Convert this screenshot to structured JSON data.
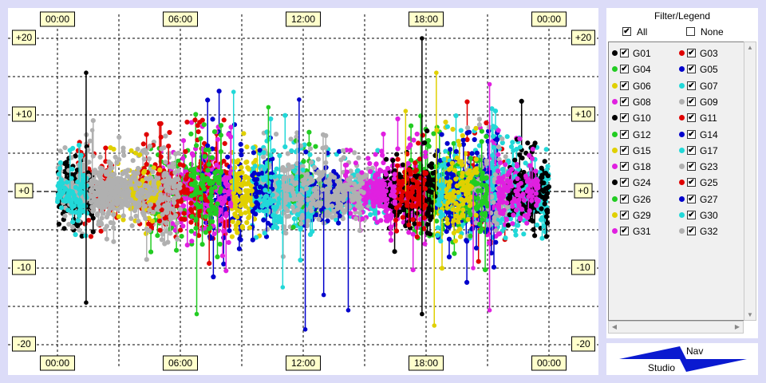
{
  "legend": {
    "title": "Filter/Legend",
    "all_label": "All",
    "all_checked": true,
    "none_label": "None",
    "none_checked": false,
    "items": [
      {
        "name": "G01",
        "color": "#000000"
      },
      {
        "name": "G03",
        "color": "#e00000"
      },
      {
        "name": "G04",
        "color": "#22cc22"
      },
      {
        "name": "G05",
        "color": "#0000cc"
      },
      {
        "name": "G06",
        "color": "#e0d000"
      },
      {
        "name": "G07",
        "color": "#22d8d8"
      },
      {
        "name": "G08",
        "color": "#e020e0"
      },
      {
        "name": "G09",
        "color": "#b0b0b0"
      },
      {
        "name": "G10",
        "color": "#000000"
      },
      {
        "name": "G11",
        "color": "#e00000"
      },
      {
        "name": "G12",
        "color": "#22cc22"
      },
      {
        "name": "G14",
        "color": "#0000cc"
      },
      {
        "name": "G15",
        "color": "#e0d000"
      },
      {
        "name": "G17",
        "color": "#22d8d8"
      },
      {
        "name": "G18",
        "color": "#e020e0"
      },
      {
        "name": "G23",
        "color": "#b0b0b0"
      },
      {
        "name": "G24",
        "color": "#000000"
      },
      {
        "name": "G25",
        "color": "#e00000"
      },
      {
        "name": "G26",
        "color": "#22cc22"
      },
      {
        "name": "G27",
        "color": "#0000cc"
      },
      {
        "name": "G29",
        "color": "#e0d000"
      },
      {
        "name": "G30",
        "color": "#22d8d8"
      },
      {
        "name": "G31",
        "color": "#e020e0"
      },
      {
        "name": "G32",
        "color": "#b0b0b0"
      }
    ]
  },
  "logo": {
    "top_text": "Nav",
    "bottom_text": "Studio",
    "color": "#0a1ad0"
  },
  "chart_data": {
    "type": "scatter",
    "x_ticks": [
      "00:00",
      "06:00",
      "12:00",
      "18:00",
      "00:00"
    ],
    "y_ticks": [
      "+20",
      "+10",
      "+0",
      "-10",
      "-20"
    ],
    "ylim": [
      -20,
      20
    ],
    "xlim_hours": [
      0,
      24
    ],
    "grid": true,
    "envelope": [
      {
        "hour": 0.0,
        "lo": -3.5,
        "hi": 4.0
      },
      {
        "hour": 1.5,
        "lo": -5.0,
        "hi": 6.0
      },
      {
        "hour": 3.0,
        "lo": -3.0,
        "hi": 4.0
      },
      {
        "hour": 5.0,
        "lo": -4.5,
        "hi": 5.5
      },
      {
        "hour": 6.5,
        "lo": -6.0,
        "hi": 8.0
      },
      {
        "hour": 9.0,
        "lo": -5.0,
        "hi": 7.0
      },
      {
        "hour": 12.0,
        "lo": -4.0,
        "hi": 5.0
      },
      {
        "hour": 15.0,
        "lo": -3.0,
        "hi": 4.0
      },
      {
        "hour": 18.0,
        "lo": -5.0,
        "hi": 6.5
      },
      {
        "hour": 21.0,
        "lo": -5.5,
        "hi": 7.0
      },
      {
        "hour": 24.0,
        "lo": -3.5,
        "hi": 4.5
      }
    ],
    "series": [
      {
        "name": "G01",
        "color": "#000000",
        "active": [
          [
            0,
            1.2
          ],
          [
            22.5,
            24
          ]
        ]
      },
      {
        "name": "G03",
        "color": "#e00000",
        "active": [
          [
            1.0,
            3.0
          ],
          [
            7.0,
            8.5
          ],
          [
            20,
            22
          ]
        ]
      },
      {
        "name": "G04",
        "color": "#22cc22",
        "active": [
          [
            4.5,
            7.0
          ],
          [
            17.5,
            19.5
          ]
        ]
      },
      {
        "name": "G05",
        "color": "#0000cc",
        "active": [
          [
            7.0,
            9.0
          ],
          [
            18.5,
            20.5
          ]
        ]
      },
      {
        "name": "G06",
        "color": "#e0d000",
        "active": [
          [
            2.5,
            4.5
          ],
          [
            8.5,
            10.0
          ],
          [
            18.5,
            20.0
          ]
        ]
      },
      {
        "name": "G07",
        "color": "#22d8d8",
        "active": [
          [
            9.5,
            12.0
          ],
          [
            18.5,
            24
          ]
        ]
      },
      {
        "name": "G08",
        "color": "#e020e0",
        "active": [
          [
            5.0,
            8.5
          ],
          [
            15.0,
            17.5
          ],
          [
            20.5,
            22.5
          ]
        ]
      },
      {
        "name": "G09",
        "color": "#b0b0b0",
        "active": [
          [
            1.0,
            5.5
          ],
          [
            10.0,
            15.5
          ]
        ]
      },
      {
        "name": "G10",
        "color": "#000000",
        "active": [
          [
            0.2,
            1.8
          ]
        ]
      },
      {
        "name": "G11",
        "color": "#e00000",
        "active": [
          [
            6.0,
            7.5
          ]
        ]
      },
      {
        "name": "G12",
        "color": "#22cc22",
        "active": [
          [
            11.5,
            13.0
          ],
          [
            17.0,
            18.5
          ]
        ]
      },
      {
        "name": "G14",
        "color": "#0000cc",
        "active": [
          [
            9.5,
            10.5
          ],
          [
            19.0,
            21.5
          ]
        ]
      },
      {
        "name": "G15",
        "color": "#e0d000",
        "active": [
          [
            8.5,
            9.5
          ]
        ]
      },
      {
        "name": "G17",
        "color": "#22d8d8",
        "active": [
          [
            13.0,
            16.0
          ],
          [
            21.0,
            24
          ]
        ]
      },
      {
        "name": "G18",
        "color": "#e020e0",
        "active": [
          [
            15.5,
            18.0
          ]
        ]
      },
      {
        "name": "G23",
        "color": "#b0b0b0",
        "active": [
          [
            0.0,
            3.0
          ],
          [
            20.0,
            22.0
          ]
        ]
      },
      {
        "name": "G24",
        "color": "#000000",
        "active": [
          [
            16.0,
            18.5
          ],
          [
            22.0,
            24
          ]
        ]
      },
      {
        "name": "G25",
        "color": "#e00000",
        "active": [
          [
            4.0,
            6.0
          ],
          [
            16.5,
            18.0
          ]
        ]
      },
      {
        "name": "G26",
        "color": "#22cc22",
        "active": [
          [
            6.5,
            8.0
          ],
          [
            19.5,
            21.0
          ]
        ]
      },
      {
        "name": "G27",
        "color": "#0000cc",
        "active": [
          [
            12.0,
            14.0
          ]
        ]
      },
      {
        "name": "G29",
        "color": "#e0d000",
        "active": [
          [
            3.5,
            5.0
          ],
          [
            19.0,
            20.5
          ]
        ]
      },
      {
        "name": "G30",
        "color": "#22d8d8",
        "active": [
          [
            0.0,
            1.5
          ],
          [
            10.0,
            12.5
          ]
        ]
      },
      {
        "name": "G31",
        "color": "#e020e0",
        "active": [
          [
            14.0,
            16.5
          ],
          [
            21.5,
            23.5
          ]
        ]
      },
      {
        "name": "G32",
        "color": "#b0b0b0",
        "active": [
          [
            2.0,
            6.0
          ],
          [
            11.0,
            15.0
          ]
        ]
      }
    ],
    "spikes": [
      {
        "series": "G01",
        "hour": 1.4,
        "y": 15.5
      },
      {
        "series": "G01",
        "hour": 1.4,
        "y": -14.5
      },
      {
        "series": "G05",
        "hour": 13.0,
        "y": -13.5
      },
      {
        "series": "G05",
        "hour": 14.2,
        "y": -15.5
      },
      {
        "series": "G04",
        "hour": 6.8,
        "y": -16.0
      },
      {
        "series": "G04",
        "hour": 10.3,
        "y": 11.0
      },
      {
        "series": "G06",
        "hour": 18.5,
        "y": 15.5
      },
      {
        "series": "G06",
        "hour": 18.4,
        "y": -17.5
      },
      {
        "series": "G08",
        "hour": 21.1,
        "y": 14.0
      },
      {
        "series": "G08",
        "hour": 21.1,
        "y": -15.5
      },
      {
        "series": "G10",
        "hour": 17.8,
        "y": 20.0
      },
      {
        "series": "G10",
        "hour": 17.8,
        "y": -16.0
      },
      {
        "series": "G07",
        "hour": 8.6,
        "y": 13.0
      },
      {
        "series": "G07",
        "hour": 11.0,
        "y": -12.5
      },
      {
        "series": "G14",
        "hour": 12.1,
        "y": -18.0
      },
      {
        "series": "G27",
        "hour": 11.8,
        "y": 12.0
      },
      {
        "series": "G31",
        "hour": 20.3,
        "y": -10.0
      },
      {
        "series": "G09",
        "hour": 1.7,
        "y": 8.0
      },
      {
        "series": "G29",
        "hour": 17.0,
        "y": 10.5
      }
    ]
  }
}
